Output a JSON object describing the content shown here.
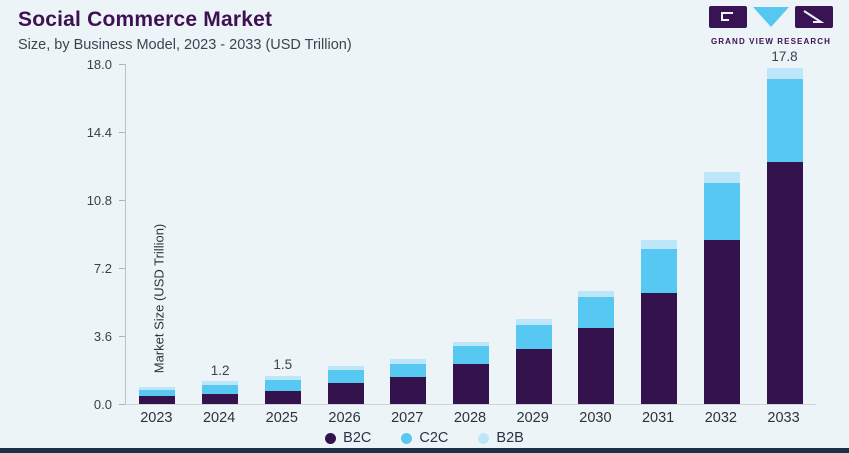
{
  "header": {
    "title": "Social Commerce Market",
    "subtitle": "Size, by Business Model, 2023 - 2033 (USD Trillion)"
  },
  "logo": {
    "text": "GRAND VIEW RESEARCH"
  },
  "colors": {
    "background": "#edf4f8",
    "title": "#3d1152",
    "axis_text": "#2e333b",
    "bottom_accent_bar": "#1b2f45",
    "logo_purple": "#3a1354",
    "logo_blue": "#56c7f1"
  },
  "chart_data": {
    "type": "bar",
    "stacked": true,
    "title": "Social Commerce Market",
    "subtitle": "Size, by Business Model, 2023 - 2033 (USD Trillion)",
    "categories": [
      "2023",
      "2024",
      "2025",
      "2026",
      "2027",
      "2028",
      "2029",
      "2030",
      "2031",
      "2032",
      "2033"
    ],
    "series": [
      {
        "name": "B2C",
        "color": "#33124e",
        "values": [
          0.45,
          0.55,
          0.7,
          1.1,
          1.45,
          2.1,
          2.9,
          4.0,
          5.9,
          8.7,
          12.8
        ]
      },
      {
        "name": "C2C",
        "color": "#57c8f2",
        "values": [
          0.3,
          0.45,
          0.55,
          0.7,
          0.65,
          0.95,
          1.3,
          1.65,
          2.3,
          3.0,
          4.4
        ]
      },
      {
        "name": "B2B",
        "color": "#bde7f8",
        "values": [
          0.15,
          0.2,
          0.25,
          0.2,
          0.3,
          0.25,
          0.3,
          0.35,
          0.5,
          0.6,
          0.6
        ]
      }
    ],
    "totals": [
      0.9,
      1.2,
      1.5,
      2.0,
      2.4,
      3.3,
      4.5,
      6.0,
      8.7,
      12.3,
      17.8
    ],
    "bar_labels": [
      "",
      "1.2",
      "1.5",
      "",
      "",
      "",
      "",
      "",
      "",
      "",
      "17.8"
    ],
    "xlabel": "",
    "ylabel": "Market Size (USD Trillion)",
    "yticks": [
      18.0,
      14.4,
      10.8,
      7.2,
      3.6,
      0.0
    ],
    "ytick_labels": [
      "18.0",
      "14.4",
      "10.8",
      "7.2",
      "3.6",
      "0.0"
    ],
    "ylim": [
      0,
      18
    ],
    "grid": false,
    "legend": [
      "B2C",
      "C2C",
      "B2B"
    ],
    "legend_position": "bottom"
  }
}
